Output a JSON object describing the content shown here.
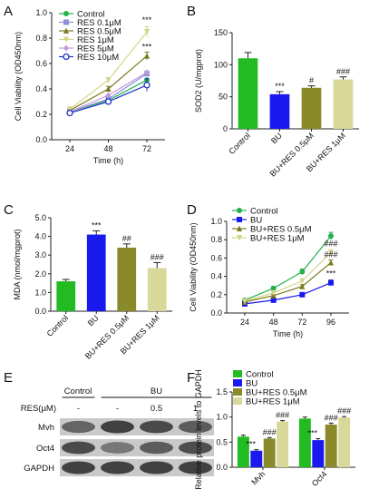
{
  "panels": {
    "A": "A",
    "B": "B",
    "C": "C",
    "D": "D",
    "E": "E",
    "F": "F"
  },
  "chart_data": [
    {
      "panel": "A",
      "type": "line",
      "xlabel": "Time (h)",
      "ylabel": "Cell Viability (OD450nm)",
      "x": [
        24,
        48,
        72
      ],
      "xticks": [
        "24",
        "48",
        "72"
      ],
      "ylim": [
        0.0,
        1.0
      ],
      "yticks": [
        "0.0",
        "0.2",
        "0.4",
        "0.6",
        "0.8",
        "1.0"
      ],
      "legend_position": "top-left",
      "series": [
        {
          "name": "Control",
          "color": "#22b14c",
          "marker": "circle",
          "values": [
            0.22,
            0.31,
            0.47
          ]
        },
        {
          "name": "RES 0.1μM",
          "color": "#8a8fd6",
          "marker": "square",
          "values": [
            0.22,
            0.32,
            0.52
          ]
        },
        {
          "name": "RES 0.5μM",
          "color": "#7a7a1f",
          "marker": "triangle",
          "values": [
            0.23,
            0.4,
            0.66
          ],
          "errors": [
            0.01,
            0.02,
            0.03
          ]
        },
        {
          "name": "RES 1μM",
          "color": "#d4d48a",
          "marker": "triangle-down",
          "values": [
            0.24,
            0.47,
            0.85
          ],
          "errors": [
            0.01,
            0.02,
            0.04
          ]
        },
        {
          "name": "RES 5μM",
          "color": "#c29bd9",
          "marker": "diamond",
          "values": [
            0.22,
            0.35,
            0.53
          ]
        },
        {
          "name": "RES 10μM",
          "color": "#2233cc",
          "marker": "circle-open",
          "values": [
            0.21,
            0.3,
            0.43
          ],
          "errors": [
            0.01,
            0.02,
            0.05
          ]
        }
      ],
      "annotations": [
        {
          "x": 72,
          "y": 0.92,
          "text": "***"
        },
        {
          "x": 72,
          "y": 0.71,
          "text": "***"
        }
      ]
    },
    {
      "panel": "B",
      "type": "bar",
      "ylabel": "SOD2 (U/mgprot)",
      "ylim": [
        0,
        150
      ],
      "yticks": [
        "0",
        "50",
        "100",
        "150"
      ],
      "categories": [
        "Control",
        "BU",
        "BU+RES 0.5μM",
        "BU+RES 1μM"
      ],
      "values": [
        110,
        54,
        64,
        77
      ],
      "errors": [
        9,
        4,
        3,
        4
      ],
      "colors": [
        "#22bb22",
        "#1a1aee",
        "#8a8a2a",
        "#d8d89a"
      ],
      "annotations": [
        "",
        "***",
        "#",
        "###"
      ]
    },
    {
      "panel": "C",
      "type": "bar",
      "ylabel": "MDA (nmol/mgprot)",
      "ylim": [
        0.0,
        5.0
      ],
      "yticks": [
        "0.0",
        "1.0",
        "2.0",
        "3.0",
        "4.0",
        "5.0"
      ],
      "categories": [
        "Control",
        "BU",
        "BU+RES 0.5μM",
        "BU+RES 1μM"
      ],
      "values": [
        1.6,
        4.1,
        3.4,
        2.3
      ],
      "errors": [
        0.1,
        0.2,
        0.2,
        0.3
      ],
      "colors": [
        "#22bb22",
        "#1a1aee",
        "#8a8a2a",
        "#d8d89a"
      ],
      "annotations": [
        "",
        "***",
        "##",
        "###"
      ]
    },
    {
      "panel": "D",
      "type": "line",
      "xlabel": "Time (h)",
      "ylabel": "Cell Viability (OD450nm)",
      "x": [
        24,
        48,
        72,
        96
      ],
      "xticks": [
        "24",
        "48",
        "72",
        "96"
      ],
      "ylim": [
        0.0,
        1.0
      ],
      "yticks": [
        "0.0",
        "0.2",
        "0.4",
        "0.6",
        "0.8",
        "1.0"
      ],
      "legend_position": "top-left",
      "series": [
        {
          "name": "Control",
          "color": "#22b14c",
          "marker": "circle",
          "values": [
            0.14,
            0.27,
            0.45,
            0.84
          ],
          "errors": [
            0.01,
            0.02,
            0.03,
            0.04
          ]
        },
        {
          "name": "BU",
          "color": "#1a1aee",
          "marker": "square",
          "values": [
            0.1,
            0.14,
            0.2,
            0.33
          ],
          "errors": [
            0.01,
            0.01,
            0.02,
            0.03
          ]
        },
        {
          "name": "BU+RES 0.5μM",
          "color": "#7a7a1f",
          "marker": "triangle",
          "values": [
            0.12,
            0.19,
            0.29,
            0.55
          ],
          "errors": [
            0.01,
            0.01,
            0.02,
            0.03
          ]
        },
        {
          "name": "BU+RES 1μM",
          "color": "#d4d48a",
          "marker": "triangle-down",
          "values": [
            0.13,
            0.22,
            0.35,
            0.66
          ],
          "errors": [
            0.01,
            0.01,
            0.02,
            0.03
          ]
        }
      ],
      "annotations": [
        {
          "x": 96,
          "y": 0.73,
          "text": "###"
        },
        {
          "x": 96,
          "y": 0.61,
          "text": "###"
        },
        {
          "x": 96,
          "y": 0.4,
          "text": "***"
        }
      ]
    },
    {
      "panel": "F",
      "type": "bar",
      "ylabel": "Relative protein levels to GAPDH",
      "ylim": [
        0.0,
        1.5
      ],
      "yticks": [
        "0.0",
        "0.5",
        "1.0",
        "1.5"
      ],
      "categories": [
        "Mvh",
        "Oct4"
      ],
      "legend_position": "top-left",
      "series": [
        {
          "name": "Control",
          "color": "#22bb22",
          "values": [
            0.61,
            0.97
          ],
          "errors": [
            0.03,
            0.03
          ]
        },
        {
          "name": "BU",
          "color": "#1a1aee",
          "values": [
            0.33,
            0.54
          ],
          "errors": [
            0.02,
            0.03
          ]
        },
        {
          "name": "BU+RES 0.5μM",
          "color": "#8a8a2a",
          "values": [
            0.57,
            0.85
          ],
          "errors": [
            0.02,
            0.03
          ]
        },
        {
          "name": "BU+RES 1μM",
          "color": "#d8d89a",
          "values": [
            0.91,
            0.99
          ],
          "errors": [
            0.02,
            0.02
          ]
        }
      ],
      "annotations": [
        [
          "",
          "***",
          "###",
          "###"
        ],
        [
          "",
          "***",
          "###",
          "###"
        ]
      ]
    }
  ],
  "blot": {
    "group_labels": [
      "Control",
      "BU"
    ],
    "res_label": "RES(μM)",
    "res_values": [
      "-",
      "-",
      "0.5",
      "1"
    ],
    "rows": [
      {
        "label": "Mvh",
        "intensity": [
          0.55,
          0.75,
          0.7,
          0.6
        ]
      },
      {
        "label": "Oct4",
        "intensity": [
          0.7,
          0.45,
          0.6,
          0.68
        ]
      },
      {
        "label": "GAPDH",
        "intensity": [
          0.75,
          0.75,
          0.75,
          0.75
        ]
      }
    ]
  }
}
